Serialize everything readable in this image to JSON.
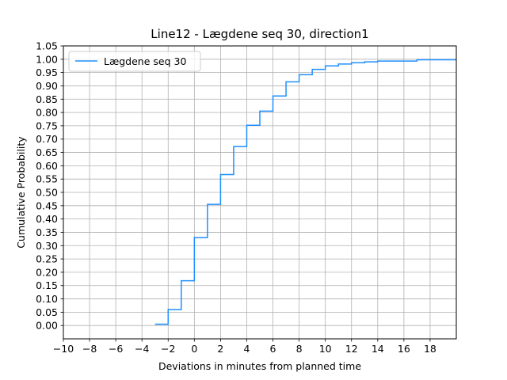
{
  "chart_data": {
    "type": "line",
    "step": "post",
    "title": "Line12 - Lægdene seq 30, direction1",
    "xlabel": "Deviations in minutes from planned time",
    "ylabel": "Cumulative Probability",
    "xlim": [
      -10,
      20
    ],
    "ylim": [
      -0.05,
      1.05
    ],
    "xticks": [
      -10,
      -8,
      -6,
      -4,
      -2,
      0,
      2,
      4,
      6,
      8,
      10,
      12,
      14,
      16,
      18
    ],
    "yticks": [
      0.0,
      0.05,
      0.1,
      0.15,
      0.2,
      0.25,
      0.3,
      0.35,
      0.4,
      0.45,
      0.5,
      0.55,
      0.6,
      0.65,
      0.7,
      0.75,
      0.8,
      0.85,
      0.9,
      0.95,
      1.0,
      1.05
    ],
    "xtick_labels": [
      "−10",
      "−8",
      "−6",
      "−4",
      "−2",
      "0",
      "2",
      "4",
      "6",
      "8",
      "10",
      "12",
      "14",
      "16",
      "18"
    ],
    "ytick_labels": [
      "0.00",
      "0.05",
      "0.10",
      "0.15",
      "0.20",
      "0.25",
      "0.30",
      "0.35",
      "0.40",
      "0.45",
      "0.50",
      "0.55",
      "0.60",
      "0.65",
      "0.70",
      "0.75",
      "0.80",
      "0.85",
      "0.90",
      "0.95",
      "1.00",
      "1.05"
    ],
    "grid": true,
    "legend": "upper-left",
    "series": [
      {
        "name": "Lægdene seq 30",
        "color": "#1f8fff",
        "x": [
          -3,
          -2,
          -1,
          0,
          1,
          2,
          3,
          4,
          5,
          6,
          7,
          8,
          9,
          10,
          11,
          12,
          13,
          14,
          17,
          20
        ],
        "y": [
          0.005,
          0.06,
          0.168,
          0.33,
          0.455,
          0.567,
          0.672,
          0.752,
          0.805,
          0.862,
          0.915,
          0.942,
          0.962,
          0.975,
          0.982,
          0.987,
          0.99,
          0.993,
          0.998,
          0.998
        ]
      }
    ]
  }
}
